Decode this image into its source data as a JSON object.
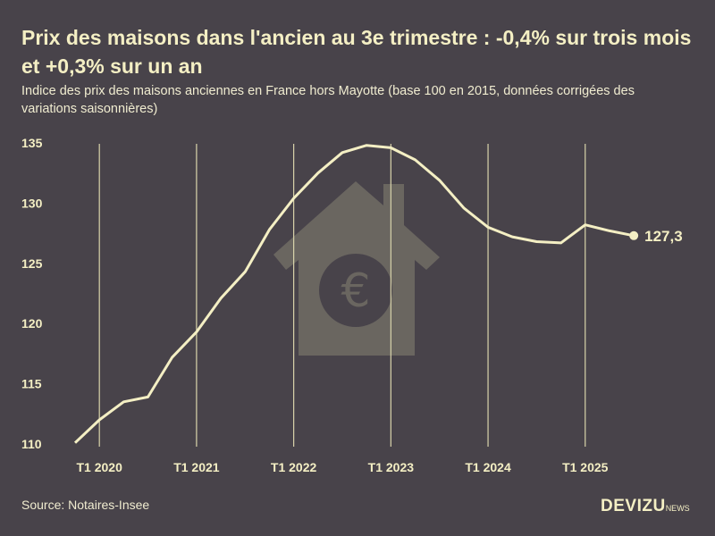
{
  "chart_data": {
    "type": "line",
    "title": "Prix des maisons dans l'ancien au 3e trimestre : -0,4% sur trois mois et +0,3% sur un an",
    "subtitle": "Indice des prix des maisons anciennes en France hors Mayotte (base 100 en 2015, données corrigées des variations saisonnières)",
    "x": [
      "T4 2019",
      "T1 2020",
      "T2 2020",
      "T3 2020",
      "T4 2020",
      "T1 2021",
      "T2 2021",
      "T3 2021",
      "T4 2021",
      "T1 2022",
      "T2 2022",
      "T3 2022",
      "T4 2022",
      "T1 2023",
      "T2 2023",
      "T3 2023",
      "T4 2023",
      "T1 2024",
      "T2 2024",
      "T3 2024",
      "T4 2024",
      "T1 2025",
      "T2 2025",
      "T3 2025"
    ],
    "values": [
      110.1,
      112.0,
      113.5,
      113.9,
      117.2,
      119.3,
      122.1,
      124.3,
      127.8,
      130.4,
      132.5,
      134.2,
      134.8,
      134.6,
      133.6,
      131.9,
      129.6,
      128.0,
      127.2,
      126.8,
      126.7,
      128.2,
      127.7,
      127.3
    ],
    "x_tick_labels": [
      "T1 2020",
      "T1 2021",
      "T1 2022",
      "T1 2023",
      "T1 2024",
      "T1 2025"
    ],
    "y_tick_labels": [
      "110",
      "115",
      "120",
      "125",
      "130",
      "135"
    ],
    "ylim": [
      110,
      135
    ],
    "last_value_label": "127,3",
    "grid": "vertical lines at T1 of each year",
    "line_color": "#f4efc4",
    "background_color": "#48434a"
  },
  "footer": {
    "source": "Source: Notaires-Insee",
    "logo_main": "DEVIZU",
    "logo_small": "NEWS"
  }
}
